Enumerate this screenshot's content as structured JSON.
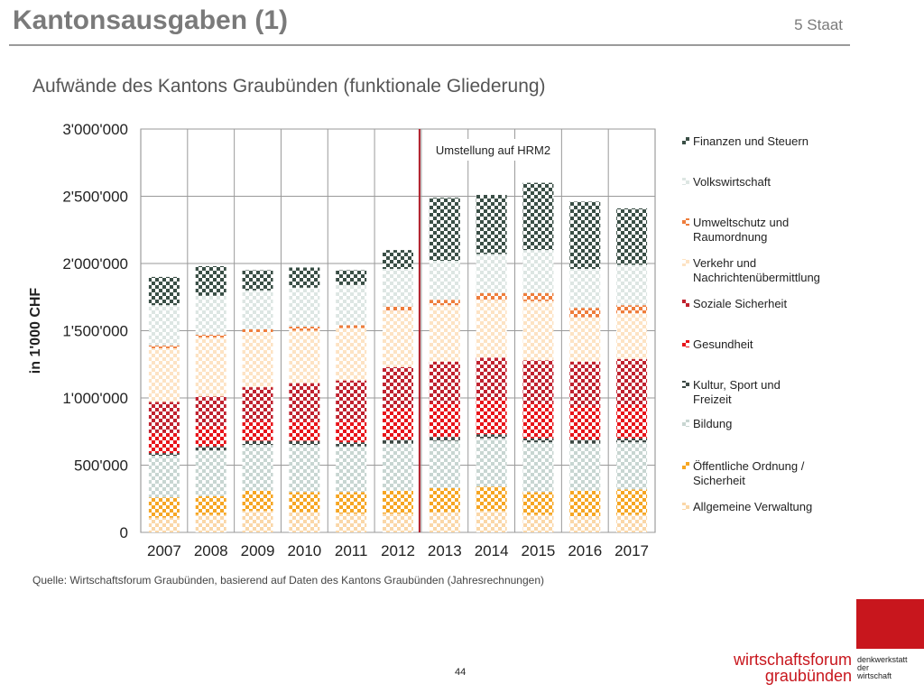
{
  "header": {
    "title": "Kantonsausgaben (1)",
    "section": "5 Staat"
  },
  "chart_title": "Aufwände des Kantons Graubünden (funktionale Gliederung)",
  "source": "Quelle: Wirtschaftsforum Graubünden, basierend auf Daten des Kantons Graubünden (Jahresrechnungen)",
  "page_number": "44",
  "branding": {
    "name_line1": "wirtschaftsforum",
    "name_line2": "graubünden",
    "tag_line1": "denkwerkstatt",
    "tag_line2": "der",
    "tag_line3": "wirtschaft",
    "accent_color": "#c8161d"
  },
  "chart_data": {
    "type": "bar",
    "stacked": true,
    "ylabel": "in 1'000 CHF",
    "ylim": [
      0,
      3000000
    ],
    "yticks": [
      0,
      500000,
      1000000,
      1500000,
      2000000,
      2500000,
      3000000
    ],
    "ytick_labels": [
      "0",
      "500'000",
      "1'000'000",
      "1'500'000",
      "2'000'000",
      "2'500'000",
      "3'000'000"
    ],
    "grid": true,
    "legend_position": "right",
    "categories": [
      "2007",
      "2008",
      "2009",
      "2010",
      "2011",
      "2012",
      "2013",
      "2014",
      "2015",
      "2016",
      "2017"
    ],
    "annotation": {
      "text": "Umstellung auf HRM2",
      "between": [
        "2012",
        "2013"
      ],
      "color": "#b01e2a"
    },
    "series": [
      {
        "name": "Allgemeine Verwaltung",
        "color": "#fad7a8",
        "values": [
          110000,
          130000,
          160000,
          150000,
          140000,
          140000,
          150000,
          160000,
          130000,
          120000,
          130000
        ]
      },
      {
        "name": "Öffentliche Ordnung / Sicherheit",
        "color": "#f6a623",
        "values": [
          150000,
          140000,
          150000,
          150000,
          160000,
          170000,
          180000,
          180000,
          170000,
          190000,
          190000
        ]
      },
      {
        "name": "Bildung",
        "color": "#c8d6d2",
        "values": [
          310000,
          340000,
          340000,
          350000,
          340000,
          350000,
          350000,
          360000,
          370000,
          350000,
          350000
        ]
      },
      {
        "name": "Kultur, Sport und Freizeit",
        "color": "#3d4a45",
        "values": [
          20000,
          30000,
          30000,
          30000,
          30000,
          30000,
          30000,
          30000,
          30000,
          30000,
          30000
        ]
      },
      {
        "name": "Gesundheit",
        "color": "#e8141a",
        "values": [
          150000,
          150000,
          150000,
          150000,
          160000,
          230000,
          250000,
          260000,
          260000,
          250000,
          250000
        ]
      },
      {
        "name": "Soziale Sicherheit",
        "color": "#c0222f",
        "values": [
          230000,
          220000,
          250000,
          280000,
          300000,
          310000,
          310000,
          310000,
          320000,
          330000,
          340000
        ]
      },
      {
        "name": "Verkehr und Nachrichtenübermittlung",
        "color": "#fde3c4",
        "values": [
          400000,
          440000,
          410000,
          390000,
          390000,
          420000,
          420000,
          430000,
          440000,
          330000,
          340000
        ]
      },
      {
        "name": "Umweltschutz und Raumordnung",
        "color": "#ee7d3c",
        "values": [
          20000,
          20000,
          20000,
          30000,
          20000,
          30000,
          40000,
          50000,
          60000,
          70000,
          60000
        ]
      },
      {
        "name": "Volkswirtschaft",
        "color": "#dde6e3",
        "values": [
          300000,
          290000,
          290000,
          290000,
          300000,
          280000,
          290000,
          290000,
          320000,
          290000,
          300000
        ]
      },
      {
        "name": "Finanzen und Steuern",
        "color": "#3a4f46",
        "values": [
          210000,
          220000,
          150000,
          150000,
          110000,
          140000,
          470000,
          440000,
          500000,
          500000,
          420000
        ]
      }
    ]
  }
}
